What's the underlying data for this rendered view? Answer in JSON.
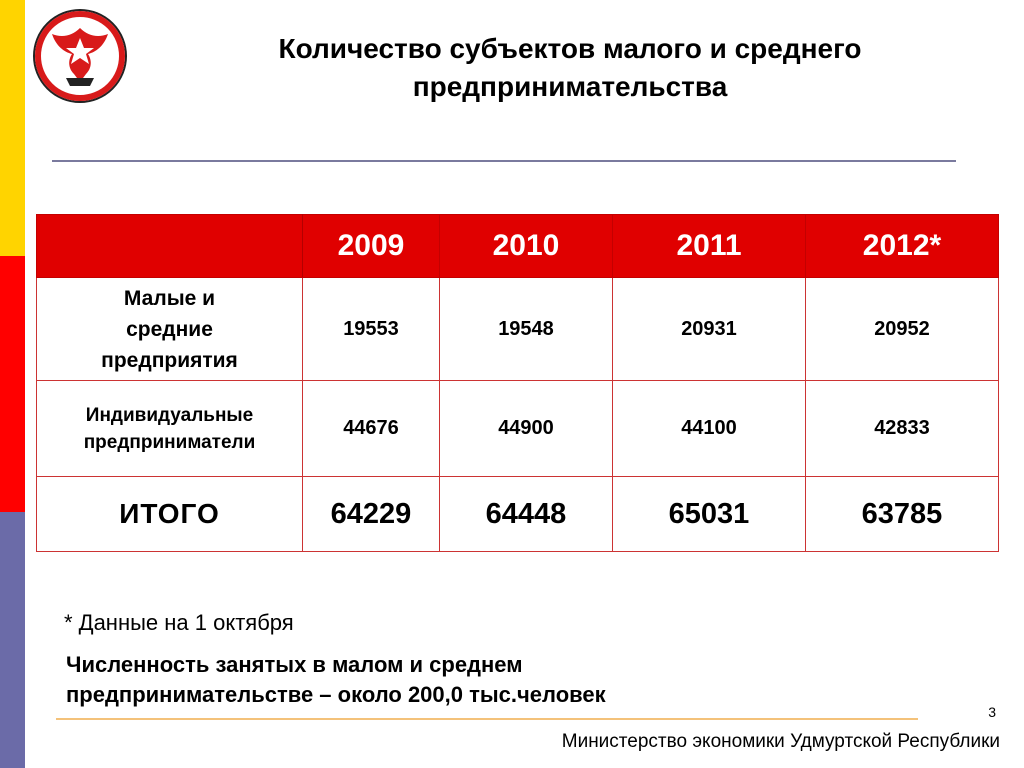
{
  "title": {
    "line1": "Количество субъектов малого и среднего",
    "line2": "предпринимательства"
  },
  "emblem": {
    "icon": "udmurtia-coat-of-arms-icon"
  },
  "table": {
    "headers": [
      "",
      "2009",
      "2010",
      "2011",
      "2012*"
    ],
    "rows": [
      {
        "label_lines": [
          "Малые и",
          "средние",
          "предприятия"
        ],
        "values": [
          "19553",
          "19548",
          "20931",
          "20952"
        ]
      },
      {
        "label_lines": [
          "Индивидуальные",
          "предприниматели"
        ],
        "values": [
          "44676",
          "44900",
          "44100",
          "42833"
        ]
      },
      {
        "label_lines": [
          "ИТОГО"
        ],
        "values": [
          "64229",
          "64448",
          "65031",
          "63785"
        ]
      }
    ]
  },
  "footnote": "* Данные на 1 октября",
  "summary": {
    "line1": "Численность занятых в малом и среднем",
    "line2": "предпринимательстве – около 200,0 тыс.человек"
  },
  "page_number": "3",
  "ministry": "Министерство экономики Удмуртской Республики",
  "colors": {
    "header_red": "#e00000",
    "side_yellow": "#ffd400",
    "side_red": "#ff0000",
    "side_blue": "#6b6ba8"
  }
}
